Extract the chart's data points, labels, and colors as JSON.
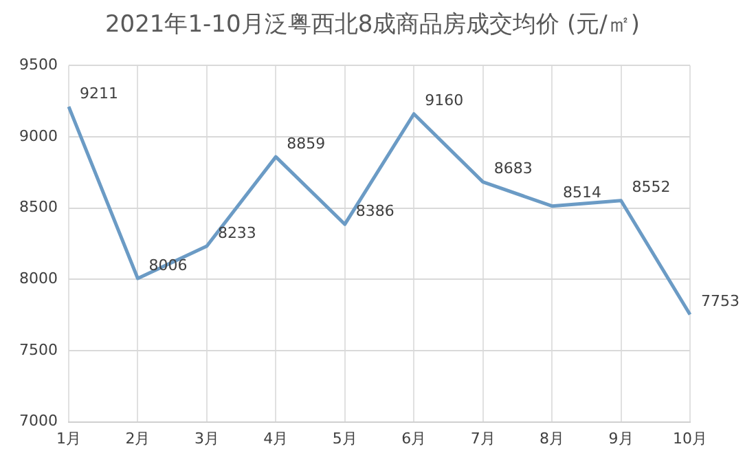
{
  "chart_data": {
    "type": "line",
    "title": "2021年1-10月泛粤西北8成商品房成交均价 (元/㎡)",
    "categories": [
      "1月",
      "2月",
      "3月",
      "4月",
      "5月",
      "6月",
      "7月",
      "8月",
      "9月",
      "10月"
    ],
    "series": [
      {
        "color": "#6b9bc5",
        "values": [
          9211,
          8006,
          8233,
          8859,
          8386,
          9160,
          8683,
          8514,
          8552,
          7753
        ]
      }
    ],
    "ylim": [
      7000,
      9500
    ],
    "yticks": [
      7000,
      7500,
      8000,
      8500,
      9000,
      9500
    ],
    "grid": true,
    "legend": false,
    "marker": "none",
    "line_style": "solid",
    "data_labels": true
  }
}
